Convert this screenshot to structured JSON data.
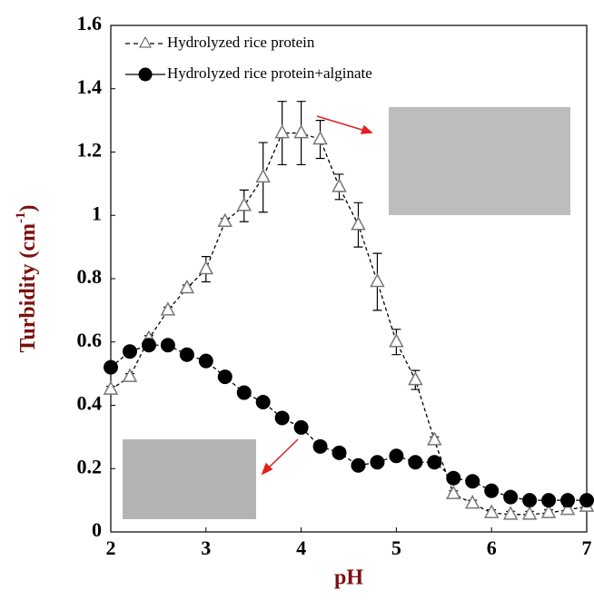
{
  "chart_data": {
    "type": "line",
    "xlabel": "pH",
    "ylabel": "Turbidity (cm",
    "ylabel_sup": "-1",
    "ylabel_end": ")",
    "x": [
      2,
      2.2,
      2.4,
      2.6,
      2.8,
      3,
      3.2,
      3.4,
      3.6,
      3.8,
      4,
      4.2,
      4.4,
      4.6,
      4.8,
      5,
      5.2,
      5.4,
      5.6,
      5.8,
      6,
      6.2,
      6.4,
      6.6,
      6.8,
      7
    ],
    "series": [
      {
        "name": "Hydrolyzed rice protein",
        "color": "#000000",
        "marker": "triangle",
        "values": [
          0.45,
          0.49,
          0.61,
          0.7,
          0.77,
          0.83,
          0.98,
          1.03,
          1.12,
          1.26,
          1.26,
          1.24,
          1.09,
          0.97,
          0.79,
          0.6,
          0.48,
          0.29,
          0.12,
          0.09,
          0.06,
          0.055,
          0.055,
          0.06,
          0.07,
          0.08
        ],
        "errors": [
          0.01,
          0.01,
          0.01,
          0.01,
          0.01,
          0.04,
          0.01,
          0.05,
          0.11,
          0.1,
          0.1,
          0.06,
          0.04,
          0.07,
          0.09,
          0.04,
          0.03,
          0.01,
          0.01,
          0.01,
          0.01,
          0.01,
          0.01,
          0.01,
          0.01,
          0.01
        ]
      },
      {
        "name": "Hydrolyzed rice protein+alginate",
        "color": "#000000",
        "marker": "circle",
        "values": [
          0.52,
          0.57,
          0.59,
          0.59,
          0.56,
          0.54,
          0.49,
          0.44,
          0.41,
          0.36,
          0.33,
          0.27,
          0.25,
          0.21,
          0.22,
          0.24,
          0.22,
          0.22,
          0.17,
          0.16,
          0.13,
          0.11,
          0.1,
          0.1,
          0.1,
          0.1
        ]
      }
    ],
    "xlim": [
      2,
      7
    ],
    "xticks": [
      2,
      3,
      4,
      5,
      6,
      7
    ],
    "ylim": [
      0,
      1.6
    ],
    "yticks": [
      0,
      0.2,
      0.4,
      0.6,
      0.8,
      1,
      1.2,
      1.4,
      1.6
    ],
    "grid": false,
    "legend": "upper left"
  }
}
